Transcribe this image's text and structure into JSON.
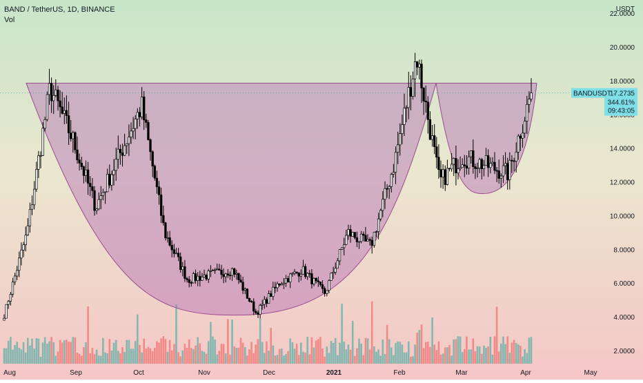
{
  "header": {
    "symbol_line": "BAND / TetherUS, 1D, BINANCE",
    "volume_label": "Vol"
  },
  "price_scale": {
    "currency": "USDT",
    "ticks": [
      "2.0000",
      "4.0000",
      "6.0000",
      "8.0000",
      "10.0000",
      "12.0000",
      "14.0000",
      "16.0000",
      "18.0000",
      "20.0000",
      "22.0000"
    ]
  },
  "price_marker": {
    "symbol": "BANDUSDT",
    "price": "17.2735",
    "change": "344.61%",
    "countdown": "09:43:05"
  },
  "time_axis": {
    "labels": [
      "Aug",
      "Sep",
      "Oct",
      "Nov",
      "Dec",
      "2021",
      "Feb",
      "Mar",
      "Apr",
      "May"
    ]
  },
  "colors": {
    "up": "#26a69a",
    "down": "#ef5350",
    "candle": "#000000",
    "cup_fill": "#b36db6",
    "cup_stroke": "#9c4a8f",
    "marker_bg": "#7fdfe6",
    "background_top": "#c8e6c9",
    "background_bottom": "#f5c6c6"
  },
  "chart_data": {
    "type": "candlestick",
    "title": "BAND / TetherUS, 1D, BINANCE",
    "y_unit": "USDT",
    "ylim": [
      1.0,
      22.8
    ],
    "last_price": 17.2735,
    "grid": false,
    "drawings": [
      {
        "type": "cup",
        "name": "cup",
        "rim_price": 17.85,
        "bottom_price": 4.1,
        "from": "Aug",
        "to": "Feb"
      },
      {
        "type": "handle",
        "name": "handle",
        "rim_price": 17.85,
        "bottom_price": 11.3,
        "from": "Feb",
        "to": "Apr"
      }
    ],
    "price_path": [
      {
        "x": "Jul-end",
        "close": 4.1
      },
      {
        "x": "Aug early",
        "close": 9.0
      },
      {
        "x": "Aug peak",
        "close": 17.6
      },
      {
        "x": "Aug mid",
        "close": 14.5
      },
      {
        "x": "Aug late",
        "close": 10.5
      },
      {
        "x": "Sep start",
        "close": 13.5
      },
      {
        "x": "Sep peak",
        "close": 16.5
      },
      {
        "x": "Sep mid",
        "close": 9.0
      },
      {
        "x": "Sep late",
        "close": 6.2
      },
      {
        "x": "Oct",
        "close": 6.5
      },
      {
        "x": "Oct mid",
        "close": 6.8
      },
      {
        "x": "Nov",
        "close": 4.2
      },
      {
        "x": "Nov mid",
        "close": 6.0
      },
      {
        "x": "Dec",
        "close": 6.8
      },
      {
        "x": "Dec late",
        "close": 5.4
      },
      {
        "x": "2021",
        "close": 9.0
      },
      {
        "x": "Jan mid",
        "close": 8.2
      },
      {
        "x": "Feb",
        "close": 13.0
      },
      {
        "x": "Feb peak",
        "close": 19.5
      },
      {
        "x": "Feb late",
        "close": 12.0
      },
      {
        "x": "Mar",
        "close": 13.5
      },
      {
        "x": "Mar mid",
        "close": 13.0
      },
      {
        "x": "Mar late",
        "close": 12.5
      },
      {
        "x": "Apr",
        "close": 17.27
      }
    ]
  }
}
